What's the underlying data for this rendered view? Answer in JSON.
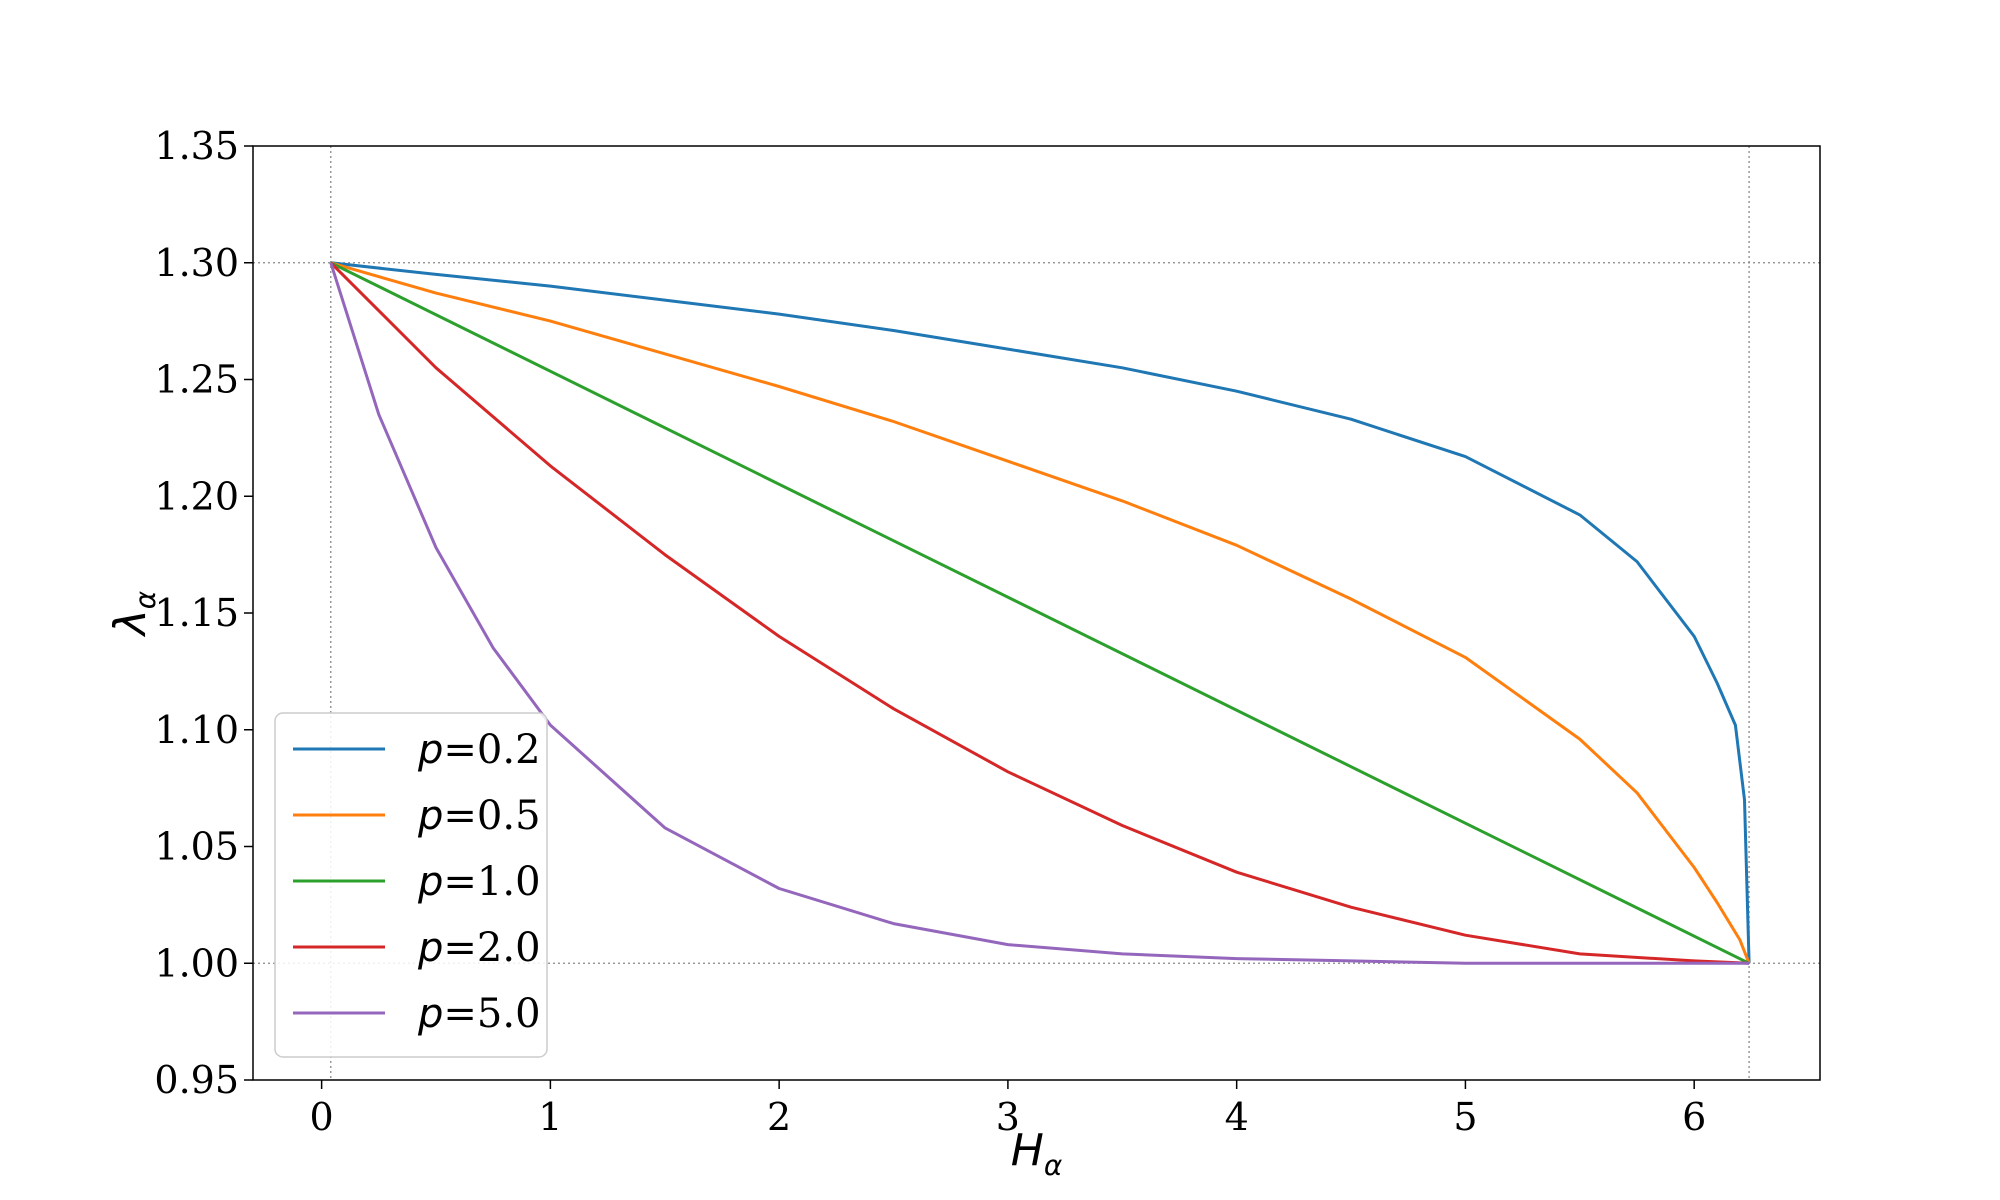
{
  "chart_data": {
    "type": "line",
    "title": "",
    "xlabel": "H",
    "xlabel_sub": "α",
    "ylabel": "λ",
    "ylabel_sub": "α",
    "xlim": [
      -0.3,
      6.55
    ],
    "ylim": [
      0.95,
      1.35
    ],
    "xticks": [
      0,
      1,
      2,
      3,
      4,
      5,
      6
    ],
    "xtick_labels": [
      "0",
      "1",
      "2",
      "3",
      "4",
      "5",
      "6"
    ],
    "yticks": [
      0.95,
      1.0,
      1.05,
      1.1,
      1.15,
      1.2,
      1.25,
      1.3,
      1.35
    ],
    "ytick_labels": [
      "0.95",
      "1.00",
      "1.05",
      "1.10",
      "1.15",
      "1.20",
      "1.25",
      "1.30",
      "1.35"
    ],
    "reference_lines": {
      "x": [
        0.04,
        6.24
      ],
      "y": [
        1.0,
        1.3
      ]
    },
    "legend_position": "lower-left",
    "legend_prefix": "p",
    "series": [
      {
        "name": "=0.2",
        "color": "#1f77b4",
        "x": [
          0.04,
          0.5,
          1.0,
          1.5,
          2.0,
          2.5,
          3.0,
          3.5,
          4.0,
          4.5,
          5.0,
          5.5,
          5.75,
          6.0,
          6.1,
          6.18,
          6.22,
          6.24
        ],
        "y": [
          1.3,
          1.295,
          1.29,
          1.284,
          1.278,
          1.271,
          1.263,
          1.255,
          1.245,
          1.233,
          1.217,
          1.192,
          1.172,
          1.14,
          1.12,
          1.102,
          1.07,
          1.0
        ]
      },
      {
        "name": "=0.5",
        "color": "#ff7f0e",
        "x": [
          0.04,
          0.5,
          1.0,
          1.5,
          2.0,
          2.5,
          3.0,
          3.5,
          4.0,
          4.5,
          5.0,
          5.5,
          5.75,
          6.0,
          6.1,
          6.2,
          6.24
        ],
        "y": [
          1.3,
          1.287,
          1.275,
          1.261,
          1.247,
          1.232,
          1.215,
          1.198,
          1.179,
          1.156,
          1.131,
          1.096,
          1.073,
          1.041,
          1.026,
          1.01,
          1.0
        ]
      },
      {
        "name": "=1.0",
        "color": "#2ca02c",
        "x": [
          0.04,
          6.24
        ],
        "y": [
          1.3,
          1.0
        ]
      },
      {
        "name": "=2.0",
        "color": "#d62728",
        "x": [
          0.04,
          0.5,
          1.0,
          1.5,
          2.0,
          2.5,
          3.0,
          3.5,
          4.0,
          4.5,
          5.0,
          5.5,
          6.0,
          6.24
        ],
        "y": [
          1.3,
          1.255,
          1.213,
          1.175,
          1.14,
          1.109,
          1.082,
          1.059,
          1.039,
          1.024,
          1.012,
          1.004,
          1.001,
          1.0
        ]
      },
      {
        "name": "=5.0",
        "color": "#9467bd",
        "x": [
          0.04,
          0.25,
          0.5,
          0.75,
          1.0,
          1.5,
          2.0,
          2.5,
          3.0,
          3.5,
          4.0,
          4.5,
          5.0,
          5.5,
          6.0,
          6.24
        ],
        "y": [
          1.3,
          1.235,
          1.178,
          1.135,
          1.102,
          1.058,
          1.032,
          1.017,
          1.008,
          1.004,
          1.002,
          1.001,
          1.0,
          1.0,
          1.0,
          1.0
        ]
      }
    ]
  }
}
